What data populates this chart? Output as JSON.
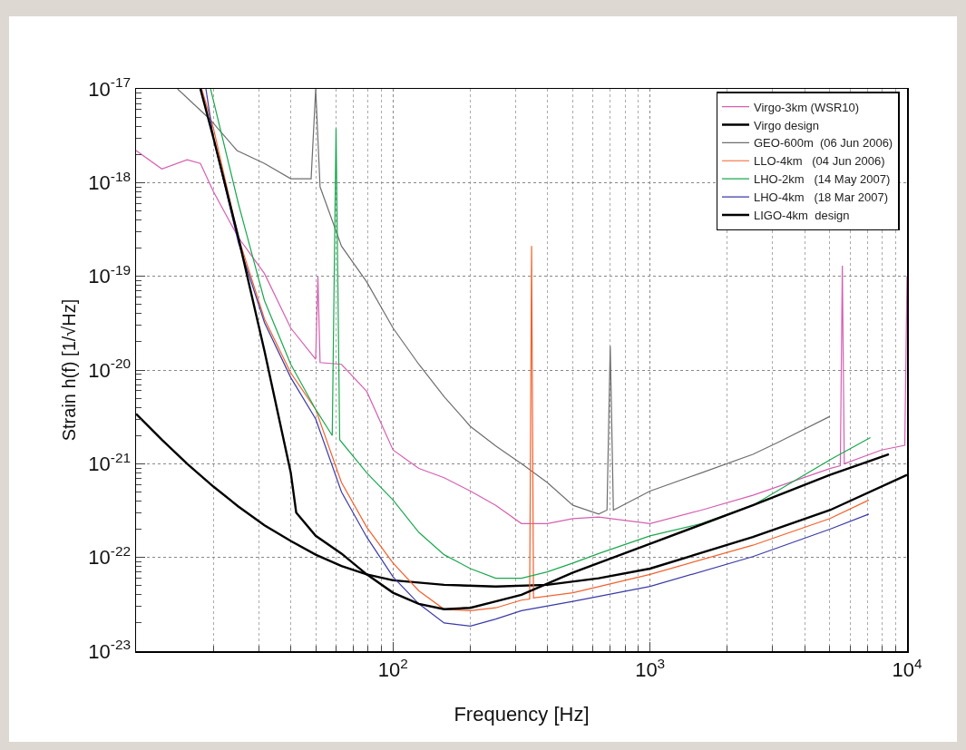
{
  "chart_data": {
    "type": "line",
    "xlabel": "Frequency [Hz]",
    "ylabel": "Strain h(f) [1/√Hz]",
    "log": "xy",
    "grid": true,
    "legend": "top right",
    "line_style": "solid",
    "marker": "none",
    "xlim": [
      10,
      10000
    ],
    "ylim": [
      1e-23,
      1e-17
    ],
    "xticks": [
      {
        "value": 10,
        "label": null
      },
      {
        "value": 100,
        "label": "10$^{2}$"
      },
      {
        "value": 1000,
        "label": "10$^{3}$"
      },
      {
        "value": 10000,
        "label": "10$^{4}$"
      }
    ],
    "yticks": [
      {
        "value": 1e-23,
        "label": "10$^{-23}$"
      },
      {
        "value": 1e-22,
        "label": "10$^{-22}$"
      },
      {
        "value": 1e-21,
        "label": "10$^{-21}$"
      },
      {
        "value": 1e-20,
        "label": "10$^{-20}$"
      },
      {
        "value": 1e-19,
        "label": "10$^{-19}$"
      },
      {
        "value": 1e-18,
        "label": "10$^{-18}$"
      },
      {
        "value": 1e-17,
        "label": "10$^{-17}$"
      }
    ],
    "series": [
      {
        "name": "Virgo-3km (WSR10)",
        "color": "#d65fb0",
        "x": [
          10,
          12.6,
          15.8,
          17.8,
          20,
          25,
          31.6,
          40,
          50,
          51,
          52,
          63,
          79,
          100,
          126,
          158,
          200,
          251,
          316,
          398,
          501,
          631,
          1000,
          1585,
          2512,
          5012,
          5500,
          5600,
          5700,
          7943,
          9800,
          10000
        ],
        "values": [
          2.2e-18,
          1.4e-18,
          1.75e-18,
          1.6e-18,
          8e-19,
          2.6e-19,
          1.07e-19,
          2.8e-20,
          1.3e-20,
          1e-19,
          1.2e-20,
          1.15e-20,
          5.9e-21,
          1.4e-21,
          8.9e-22,
          7.1e-22,
          5.1e-22,
          3.6e-22,
          2.3e-22,
          2.3e-22,
          2.6e-22,
          2.7e-22,
          2.3e-22,
          3.2e-22,
          4.6e-22,
          8.9e-22,
          9.5e-22,
          1.3e-19,
          1e-21,
          1.4e-21,
          1.57e-21,
          1e-19
        ]
      },
      {
        "name": "Virgo design",
        "color": "#000000",
        "x": [
          10,
          12.6,
          15.8,
          20,
          25,
          31.6,
          40,
          50,
          63,
          79,
          100,
          158,
          251,
          398,
          631,
          1000,
          2512,
          5012,
          10000
        ],
        "values": [
          3.4e-21,
          1.8e-21,
          1e-21,
          5.7e-22,
          3.5e-22,
          2.2e-22,
          1.5e-22,
          1.07e-22,
          8.1e-23,
          6.6e-23,
          5.7e-23,
          5.1e-23,
          4.9e-23,
          5.1e-23,
          6e-23,
          7.6e-23,
          1.65e-22,
          3.2e-22,
          7.6e-22
        ]
      },
      {
        "name": "GEO-600m  (06 Jun 2006)",
        "color": "#6e6e6e",
        "x": [
          14.5,
          19.3,
          24.7,
          31.6,
          40,
          48,
          50,
          52,
          63,
          79,
          100,
          126,
          158,
          200,
          251,
          316,
          398,
          501,
          631,
          680,
          700,
          720,
          1000,
          1585,
          2512,
          3162,
          5012
        ],
        "values": [
          1e-17,
          4.8e-18,
          2.2e-18,
          1.6e-18,
          1.1e-18,
          1.1e-18,
          1e-17,
          9e-19,
          2.1e-19,
          8.7e-20,
          2.8e-20,
          1.15e-20,
          5.2e-21,
          2.5e-21,
          1.55e-21,
          1e-21,
          6.3e-22,
          3.6e-22,
          2.9e-22,
          3.2e-22,
          1.8e-20,
          3.2e-22,
          5.1e-22,
          8e-22,
          1.26e-21,
          1.7e-21,
          3.2e-21
        ]
      },
      {
        "name": "LLO-4km   (04 Jun 2006)",
        "color": "#f4602a",
        "x": [
          18,
          20,
          25,
          31.6,
          40,
          50,
          63,
          79,
          100,
          126,
          158,
          200,
          251,
          316,
          340,
          346,
          352,
          501,
          1000,
          2512,
          5012,
          7100
        ],
        "values": [
          1e-17,
          3.8e-18,
          2.6e-19,
          3.5e-20,
          9.3e-21,
          3.8e-21,
          6.3e-22,
          2.1e-22,
          8.7e-23,
          4.4e-23,
          2.8e-23,
          2.7e-23,
          2.9e-23,
          3.5e-23,
          3.6e-23,
          2.1e-19,
          3.7e-23,
          4.2e-23,
          6.6e-23,
          1.35e-22,
          2.6e-22,
          4.1e-22
        ]
      },
      {
        "name": "LHO-2km   (14 May 2007)",
        "color": "#1aa84e",
        "x": [
          19.5,
          25,
          31.6,
          40,
          50,
          58,
          60,
          62,
          79,
          100,
          126,
          158,
          200,
          251,
          316,
          398,
          501,
          631,
          1000,
          1585,
          2512,
          5012,
          7200
        ],
        "values": [
          1e-17,
          6e-19,
          5.5e-20,
          1.15e-20,
          3.8e-21,
          2e-21,
          3.8e-18,
          1.8e-21,
          8e-22,
          4.1e-22,
          1.85e-22,
          1.07e-22,
          7.6e-23,
          6e-23,
          6e-23,
          7e-23,
          8.7e-23,
          1.1e-22,
          1.7e-22,
          2.3e-22,
          3.6e-22,
          1.1e-21,
          1.9e-21
        ]
      },
      {
        "name": "LHO-4km   (18 Mar 2007)",
        "color": "#3a3aa8",
        "x": [
          18.7,
          20,
          25,
          31.6,
          40,
          50,
          63,
          79,
          100,
          126,
          158,
          200,
          251,
          316,
          501,
          1000,
          2512,
          5012,
          7100
        ],
        "values": [
          1e-17,
          3e-18,
          2.3e-19,
          3.2e-20,
          8.3e-21,
          3e-21,
          5e-22,
          1.65e-22,
          6.2e-23,
          3.2e-23,
          2e-23,
          1.85e-23,
          2.2e-23,
          2.7e-23,
          3.4e-23,
          4.9e-23,
          1.02e-22,
          2e-22,
          2.9e-22
        ]
      },
      {
        "name": "LIGO-4km  design",
        "color": "#000000",
        "x": [
          17.8,
          20,
          25,
          31.6,
          40,
          42,
          50,
          63,
          79,
          100,
          126,
          158,
          200,
          251,
          316,
          501,
          1000,
          2512,
          5012,
          8500
        ],
        "values": [
          1e-17,
          3e-18,
          2.6e-19,
          1.6e-20,
          8e-22,
          3e-22,
          1.7e-22,
          1.1e-22,
          6.6e-23,
          4.2e-23,
          3.2e-23,
          2.8e-23,
          2.9e-23,
          3.4e-23,
          4e-23,
          6.9e-23,
          1.4e-22,
          3.6e-22,
          7.6e-22,
          1.26e-21
        ]
      }
    ]
  }
}
